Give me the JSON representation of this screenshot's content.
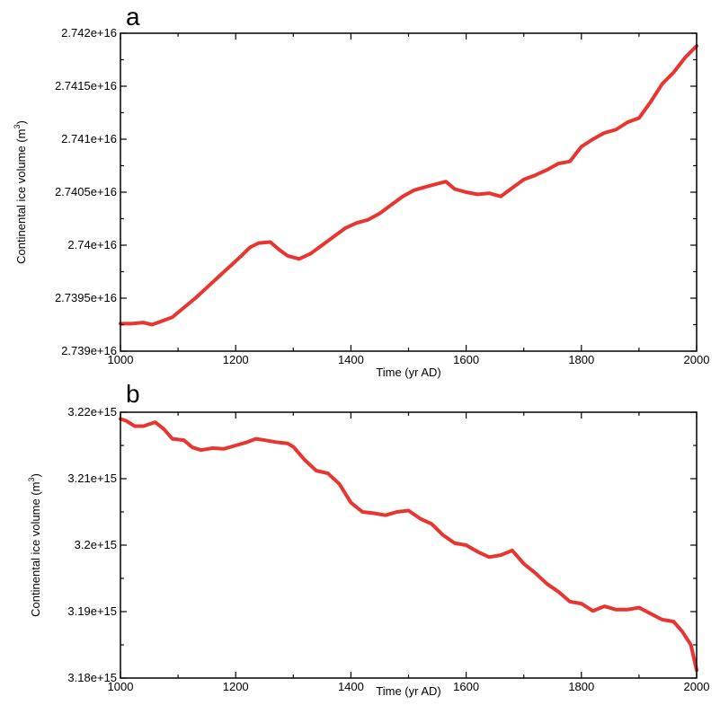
{
  "chart_data": [
    {
      "type": "line",
      "panel_label": "a",
      "xlabel": "Time (yr AD)",
      "ylabel": "Continental ice volume (m",
      "ylabel_sup": "3",
      "ylabel_close": ")",
      "xlim": [
        1000,
        2000
      ],
      "ylim": [
        2.739e+16,
        2.742e+16
      ],
      "x_ticks": [
        1000,
        1200,
        1400,
        1600,
        1800,
        2000
      ],
      "x_tick_labels": [
        "1000",
        "1200",
        "1400",
        "1600",
        "1800",
        "2000"
      ],
      "y_ticks": [
        2.739e+16,
        2.7395e+16,
        2.74e+16,
        2.7405e+16,
        2.741e+16,
        2.7415e+16,
        2.742e+16
      ],
      "y_tick_labels": [
        "2.739e+16",
        "2.7395e+16",
        "2.74e+16",
        "2.7405e+16",
        "2.741e+16",
        "2.7415e+16",
        "2.742e+16"
      ],
      "series_color": "#e8352f",
      "series": [
        {
          "x": [
            1000,
            1020,
            1040,
            1055,
            1070,
            1090,
            1110,
            1130,
            1150,
            1170,
            1190,
            1210,
            1225,
            1240,
            1260,
            1275,
            1290,
            1310,
            1330,
            1350,
            1370,
            1390,
            1410,
            1430,
            1450,
            1470,
            1490,
            1510,
            1530,
            1550,
            1565,
            1580,
            1600,
            1620,
            1640,
            1660,
            1680,
            1700,
            1720,
            1740,
            1760,
            1780,
            1800,
            1820,
            1840,
            1860,
            1880,
            1900,
            1920,
            1940,
            1960,
            1980,
            2000
          ],
          "y": [
            2.73926e+16,
            2.73926e+16,
            2.73927e+16,
            2.73925e+16,
            2.73928e+16,
            2.73932e+16,
            2.73941e+16,
            2.7395e+16,
            2.7396e+16,
            2.7397e+16,
            2.7398e+16,
            2.7399e+16,
            2.73998e+16,
            2.74002e+16,
            2.74003e+16,
            2.73996e+16,
            2.7399e+16,
            2.73987e+16,
            2.73992e+16,
            2.74e+16,
            2.74008e+16,
            2.74016e+16,
            2.74021e+16,
            2.74024e+16,
            2.7403e+16,
            2.74038e+16,
            2.74046e+16,
            2.74052e+16,
            2.74055e+16,
            2.74058e+16,
            2.7406e+16,
            2.74053e+16,
            2.7405e+16,
            2.74048e+16,
            2.74049e+16,
            2.74046e+16,
            2.74054e+16,
            2.74062e+16,
            2.74066e+16,
            2.74071e+16,
            2.74077e+16,
            2.74079e+16,
            2.74093e+16,
            2.741e+16,
            2.74106e+16,
            2.74109e+16,
            2.74116e+16,
            2.7412e+16,
            2.74135e+16,
            2.74152e+16,
            2.74163e+16,
            2.74177e+16,
            2.74188e+16
          ]
        }
      ]
    },
    {
      "type": "line",
      "panel_label": "b",
      "xlabel": "Time (yr AD)",
      "ylabel": "Continental ice volume (m",
      "ylabel_sup": "3",
      "ylabel_close": ")",
      "xlim": [
        1000,
        2000
      ],
      "ylim": [
        3180000000000000.0,
        3220000000000000.0
      ],
      "x_ticks": [
        1000,
        1200,
        1400,
        1600,
        1800,
        2000
      ],
      "x_tick_labels": [
        "1000",
        "1200",
        "1400",
        "1600",
        "1800",
        "2000"
      ],
      "y_ticks": [
        3180000000000000.0,
        3190000000000000.0,
        3200000000000000.0,
        3210000000000000.0,
        3220000000000000.0
      ],
      "y_tick_labels": [
        "3.18e+15",
        "3.19e+15",
        "3.2e+15",
        "3.21e+15",
        "3.22e+15"
      ],
      "series_color": "#e8352f",
      "series": [
        {
          "x": [
            1000,
            1010,
            1025,
            1040,
            1060,
            1075,
            1090,
            1110,
            1125,
            1140,
            1160,
            1180,
            1200,
            1220,
            1235,
            1250,
            1270,
            1290,
            1300,
            1320,
            1340,
            1360,
            1380,
            1400,
            1420,
            1440,
            1460,
            1480,
            1500,
            1520,
            1540,
            1560,
            1580,
            1600,
            1620,
            1640,
            1660,
            1680,
            1700,
            1720,
            1740,
            1760,
            1780,
            1800,
            1820,
            1840,
            1860,
            1880,
            1900,
            1920,
            1940,
            1960,
            1975,
            1990,
            2000
          ],
          "y": [
            3219000000000000.0,
            3218700000000000.0,
            3217900000000000.0,
            3217900000000000.0,
            3218500000000000.0,
            3217500000000000.0,
            3216000000000000.0,
            3215800000000000.0,
            3214700000000000.0,
            3214300000000000.0,
            3214600000000000.0,
            3214500000000000.0,
            3215000000000000.0,
            3215500000000000.0,
            3216000000000000.0,
            3215800000000000.0,
            3215500000000000.0,
            3215300000000000.0,
            3214800000000000.0,
            3212800000000000.0,
            3211200000000000.0,
            3210800000000000.0,
            3209200000000000.0,
            3206400000000000.0,
            3205000000000000.0,
            3204800000000000.0,
            3204500000000000.0,
            3205000000000000.0,
            3205200000000000.0,
            3204000000000000.0,
            3203200000000000.0,
            3201500000000000.0,
            3200300000000000.0,
            3200000000000000.0,
            3199000000000000.0,
            3198200000000000.0,
            3198500000000000.0,
            3199200000000000.0,
            3197200000000000.0,
            3195800000000000.0,
            3194200000000000.0,
            3193000000000000.0,
            3191500000000000.0,
            3191200000000000.0,
            3190100000000000.0,
            3190800000000000.0,
            3190300000000000.0,
            3190300000000000.0,
            3190600000000000.0,
            3189700000000000.0,
            3188800000000000.0,
            3188500000000000.0,
            3187000000000000.0,
            3185000000000000.0,
            3181200000000000.0
          ]
        }
      ]
    }
  ]
}
